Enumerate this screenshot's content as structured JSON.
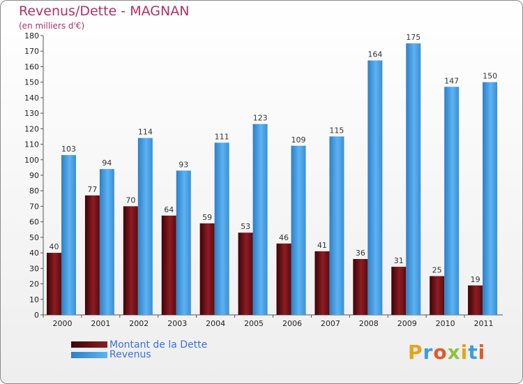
{
  "chart_data": {
    "type": "bar",
    "title": "Revenus/Dette - MAGNAN",
    "subtitle": "(en milliers d'€)",
    "categories": [
      "2000",
      "2001",
      "2002",
      "2003",
      "2004",
      "2005",
      "2006",
      "2007",
      "2008",
      "2009",
      "2010",
      "2011"
    ],
    "series": [
      {
        "name": "Montant de la Dette",
        "color": "#7a1418",
        "values": [
          40,
          77,
          70,
          64,
          59,
          53,
          46,
          41,
          36,
          31,
          25,
          19
        ]
      },
      {
        "name": "Revenus",
        "color": "#4aa3e6",
        "values": [
          103,
          94,
          114,
          93,
          111,
          123,
          109,
          115,
          164,
          175,
          147,
          150
        ]
      }
    ],
    "ylim": [
      0,
      180
    ],
    "ytick_step": 10,
    "grid": false,
    "legend_position": "bottom-left"
  },
  "logo": {
    "text": "Proxiti",
    "letters": [
      "P",
      "r",
      "o",
      "x",
      "i",
      "t",
      "i"
    ]
  }
}
